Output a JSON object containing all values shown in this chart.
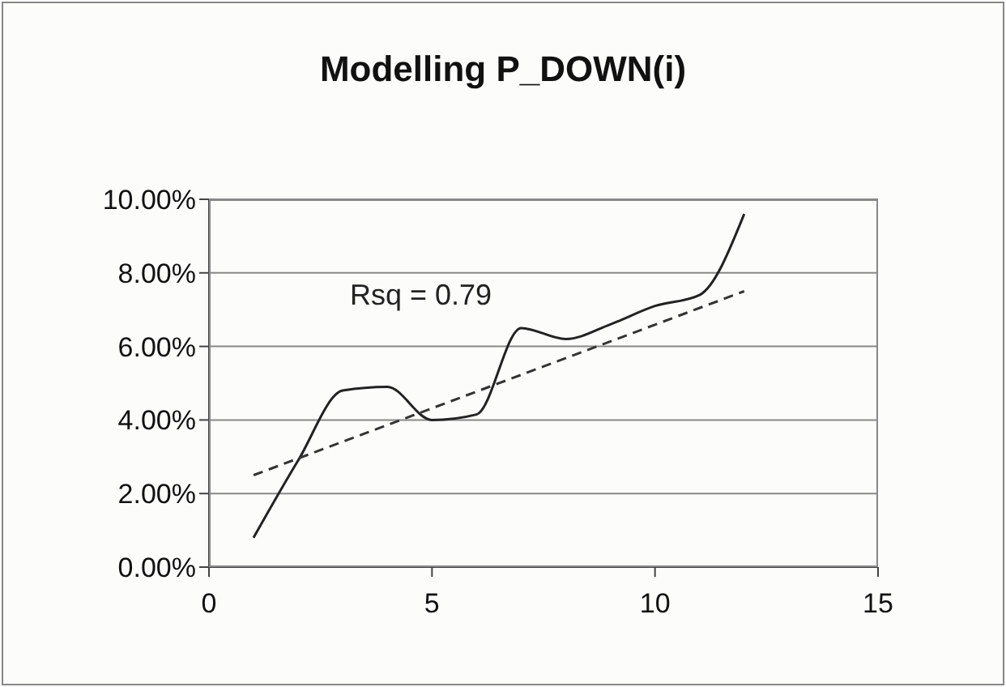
{
  "chart_data": {
    "type": "line",
    "title": "Modelling P_DOWN(i)",
    "annotations": [
      "Rsq = 0.79"
    ],
    "series": [
      {
        "type": "line",
        "color": "#222222",
        "line_style": "solid",
        "x": [
          1,
          2,
          3,
          4,
          5,
          6,
          7,
          8,
          9,
          10,
          11,
          12
        ],
        "values": [
          0.8,
          2.9,
          4.8,
          4.9,
          4.0,
          4.15,
          6.5,
          6.2,
          6.6,
          7.1,
          7.4,
          9.6
        ]
      },
      {
        "type": "line",
        "color": "#333333",
        "line_style": "dashed",
        "x": [
          1,
          12
        ],
        "values": [
          2.5,
          7.5
        ]
      }
    ],
    "xlim": [
      0,
      15
    ],
    "xticks": [
      0,
      5,
      10,
      15
    ],
    "ylim": [
      0,
      10
    ],
    "yticks": [
      {
        "value": 0,
        "label": "0.00%"
      },
      {
        "value": 2,
        "label": "2.00%"
      },
      {
        "value": 4,
        "label": "4.00%"
      },
      {
        "value": 6,
        "label": "6.00%"
      },
      {
        "value": 8,
        "label": "8.00%"
      },
      {
        "value": 10,
        "label": "10.00%"
      }
    ],
    "grid": "y",
    "marker": "none"
  }
}
